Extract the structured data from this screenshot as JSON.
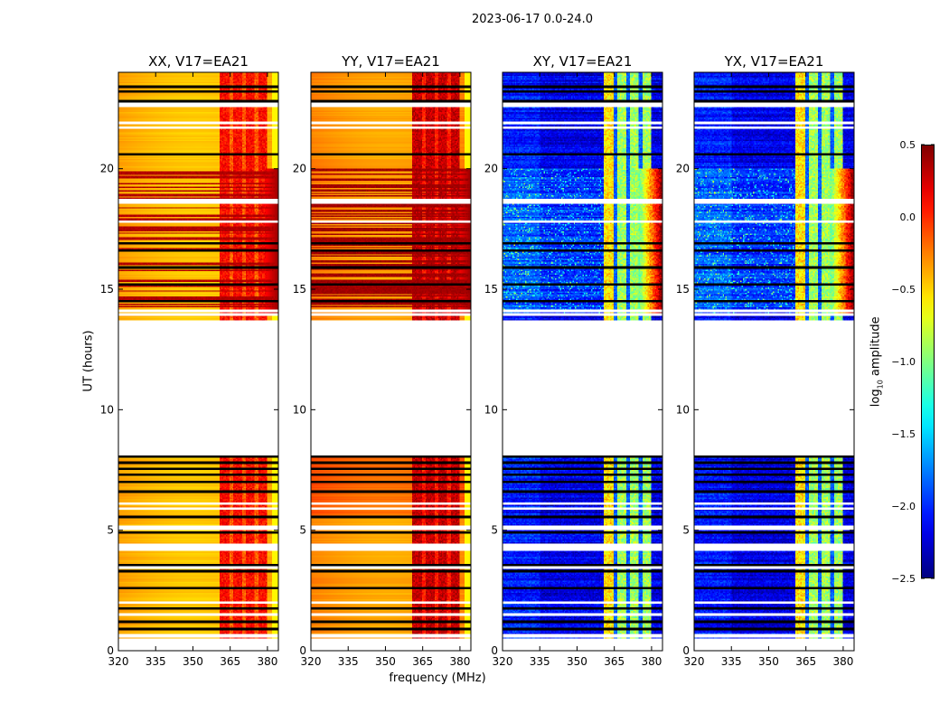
{
  "chart_data": {
    "type": "heatmap",
    "title": "2023-06-17 0.0-24.0",
    "xlabel": "frequency (MHz)",
    "ylabel": "UT (hours)",
    "xlim": [
      320,
      384.4
    ],
    "ylim": [
      0,
      24
    ],
    "xticks": [
      320,
      335,
      350,
      365,
      380
    ],
    "yticks": [
      0,
      5,
      10,
      15,
      20
    ],
    "colorbar": {
      "label_prefix": "log",
      "label_sub": "10",
      "label_suffix": " amplitude",
      "colormap": "jet",
      "range": [
        -2.5,
        0.5
      ],
      "ticks": [
        0.5,
        0.0,
        -0.5,
        -1.0,
        -1.5,
        -2.0,
        -2.5
      ],
      "tick_labels": [
        "0.5",
        "0.0",
        "−0.5",
        "−1.0",
        "−1.5",
        "−2.0",
        "−2.5"
      ]
    },
    "data_segments_hours": [
      [
        0.5,
        8.1
      ],
      [
        13.7,
        24.0
      ]
    ],
    "active_period_hours": [
      14.0,
      20.0
    ],
    "rfi_band_mhz": [
      361,
      380
    ],
    "rfi_notch_channels_mhz": [
      365.5,
      370.5,
      375.6
    ],
    "flagged_white_hours": [
      0.6,
      0.65,
      1.5,
      2.0,
      3.45,
      4.2,
      4.3,
      4.4,
      5.05,
      5.15,
      5.9,
      6.1,
      13.95,
      14.1,
      17.8,
      18.6,
      18.7,
      21.7,
      21.9,
      22.6,
      22.7
    ],
    "black_line_hours": [
      0.9,
      1.2,
      1.75,
      2.6,
      3.3,
      3.55,
      4.9,
      5.55,
      6.6,
      7.0,
      7.3,
      7.55,
      7.8,
      8.05,
      14.5,
      15.2,
      15.9,
      16.6,
      16.9,
      20.6,
      22.8,
      23.2,
      23.4
    ],
    "panels": [
      {
        "title": "XX, V17=EA21",
        "pol": "XX",
        "base_level": -0.35,
        "band_level": 0.1,
        "active_flare_level": 0.4
      },
      {
        "title": "YY, V17=EA21",
        "pol": "YY",
        "base_level": -0.25,
        "band_level": 0.3,
        "active_flare_level": 0.45
      },
      {
        "title": "XY, V17=EA21",
        "pol": "XY",
        "base_level": -2.2,
        "band_level": -0.9,
        "active_flare_level": 0.3
      },
      {
        "title": "YX, V17=EA21",
        "pol": "YX",
        "base_level": -2.2,
        "band_level": -0.9,
        "active_flare_level": 0.3
      }
    ]
  }
}
